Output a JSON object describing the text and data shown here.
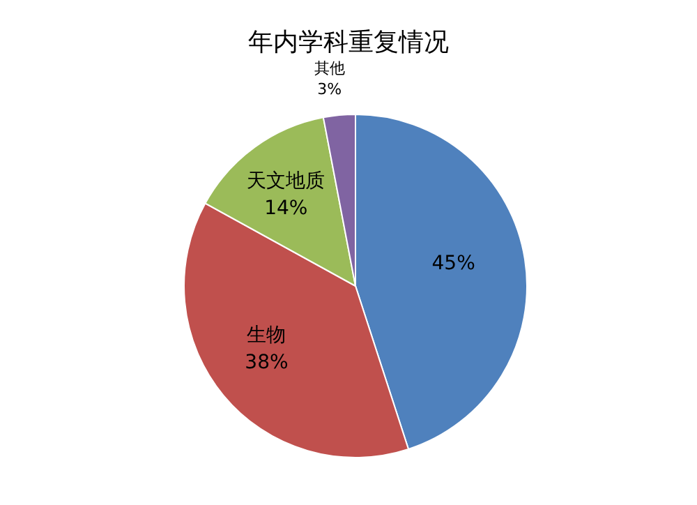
{
  "chart_data": {
    "type": "pie",
    "title": "年内学科重复情况",
    "categories": [
      null,
      "生物",
      "天文地质",
      "其他"
    ],
    "values": [
      45,
      38,
      14,
      3
    ],
    "colors": [
      "#4f81bd",
      "#c0504d",
      "#9bbb59",
      "#8064a2"
    ],
    "value_labels": [
      "45%",
      "38%",
      "14%",
      "3%"
    ]
  }
}
